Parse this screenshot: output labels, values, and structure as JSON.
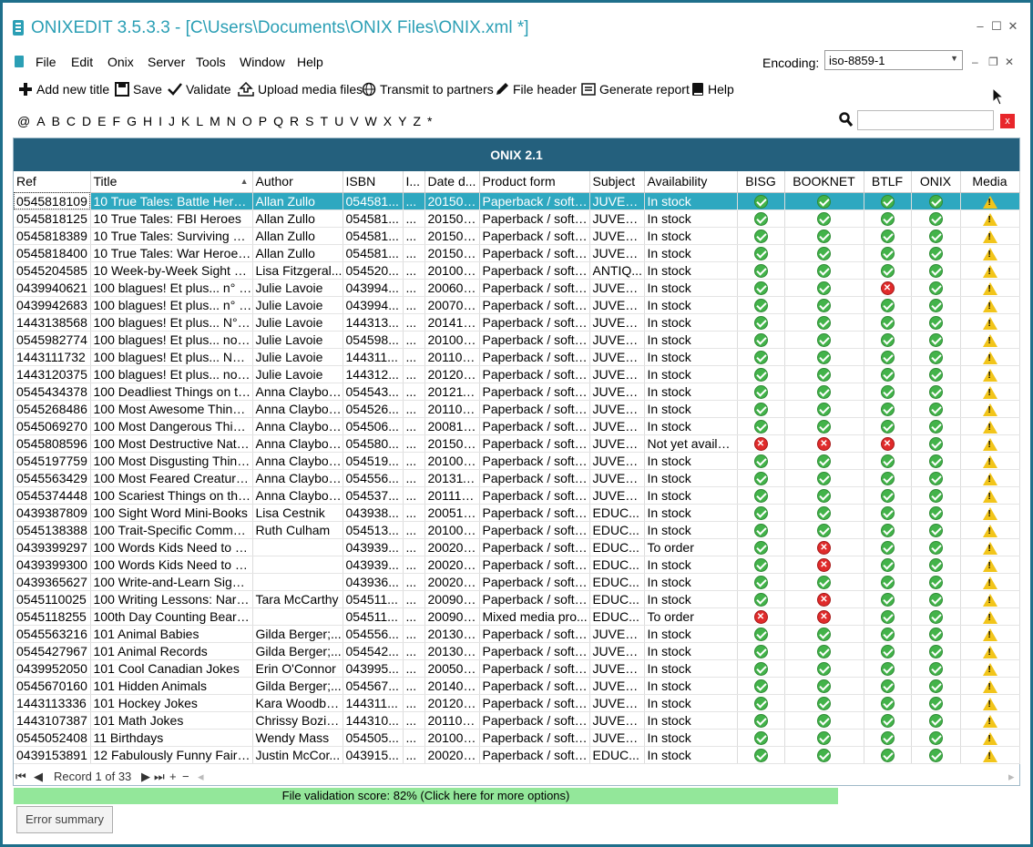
{
  "window": {
    "title": "ONIXEDIT 3.5.3.3 -  [C\\Users\\Documents\\ONIX Files\\ONIX.xml *]",
    "minimize": "–",
    "maximize": "☐",
    "close": "✕"
  },
  "menu": {
    "items": [
      "File",
      "Edit",
      "Onix",
      "Server",
      "Tools",
      "Window",
      "Help"
    ],
    "encoding_label": "Encoding:",
    "encoding_value": "iso-8859-1"
  },
  "toolbar": {
    "add_new_title": "Add new title",
    "save": "Save",
    "validate": "Validate",
    "upload_media": "Upload media files",
    "transmit": "Transmit to partners",
    "file_header": "File header",
    "generate_report": "Generate report",
    "help": "Help"
  },
  "alphabet": [
    "@",
    "A",
    "B",
    "C",
    "D",
    "E",
    "F",
    "G",
    "H",
    "I",
    "J",
    "K",
    "L",
    "M",
    "N",
    "O",
    "P",
    "Q",
    "R",
    "S",
    "T",
    "U",
    "V",
    "W",
    "X",
    "Y",
    "Z",
    "*"
  ],
  "search": {
    "clear": "x"
  },
  "grid": {
    "band_title": "ONIX 2.1",
    "columns": [
      "Ref",
      "Title",
      "Author",
      "ISBN",
      "I...",
      "Date d...",
      "Product form",
      "Subject",
      "Availability",
      "BISG",
      "BOOKNET",
      "BTLF",
      "ONIX",
      "Media"
    ],
    "rows": [
      {
        "ref": "0545818109",
        "title": "10 True Tales: Battle Heroes",
        "author": "Allan Zullo",
        "isbn": "054581...",
        "i": "...",
        "date": "201501...",
        "form": "Paperback / softb...",
        "subject": "JUVEN...",
        "avail": "In stock",
        "bisg": "ok",
        "booknet": "ok",
        "btlf": "ok",
        "onix": "ok",
        "media": "warn"
      },
      {
        "ref": "0545818125",
        "title": "10 True Tales: FBI Heroes",
        "author": "Allan Zullo",
        "isbn": "054581...",
        "i": "...",
        "date": "201501...",
        "form": "Paperback / softb...",
        "subject": "JUVEN...",
        "avail": "In stock",
        "bisg": "ok",
        "booknet": "ok",
        "btlf": "ok",
        "onix": "ok",
        "media": "warn"
      },
      {
        "ref": "0545818389",
        "title": "10 True Tales: Surviving Sh...",
        "author": "Allan Zullo",
        "isbn": "054581...",
        "i": "...",
        "date": "201501...",
        "form": "Paperback / softb...",
        "subject": "JUVEN...",
        "avail": "In stock",
        "bisg": "ok",
        "booknet": "ok",
        "btlf": "ok",
        "onix": "ok",
        "media": "warn"
      },
      {
        "ref": "0545818400",
        "title": "10 True Tales: War Heroes ...",
        "author": "Allan Zullo",
        "isbn": "054581...",
        "i": "...",
        "date": "201501...",
        "form": "Paperback / softb...",
        "subject": "JUVEN...",
        "avail": "In stock",
        "bisg": "ok",
        "booknet": "ok",
        "btlf": "ok",
        "onix": "ok",
        "media": "warn"
      },
      {
        "ref": "0545204585",
        "title": "10 Week-by-Week Sight W...",
        "author": "Lisa Fitzgeral...",
        "isbn": "054520...",
        "i": "...",
        "date": "201007...",
        "form": "Paperback / softb...",
        "subject": "ANTIQ...",
        "avail": "In stock",
        "bisg": "ok",
        "booknet": "ok",
        "btlf": "ok",
        "onix": "ok",
        "media": "warn"
      },
      {
        "ref": "0439940621",
        "title": "100 blagues! Et plus... n° 12",
        "author": "Julie Lavoie",
        "isbn": "043994...",
        "i": "...",
        "date": "200605...",
        "form": "Paperback / softb...",
        "subject": "JUVEN...",
        "avail": "In stock",
        "bisg": "ok",
        "booknet": "ok",
        "btlf": "err",
        "onix": "ok",
        "media": "warn"
      },
      {
        "ref": "0439942683",
        "title": "100 blagues! Et plus... n° 16",
        "author": "Julie Lavoie",
        "isbn": "043994...",
        "i": "...",
        "date": "200705...",
        "form": "Paperback / softb...",
        "subject": "JUVEN...",
        "avail": "In stock",
        "bisg": "ok",
        "booknet": "ok",
        "btlf": "ok",
        "onix": "ok",
        "media": "warn"
      },
      {
        "ref": "1443138568",
        "title": "100 blagues! Et plus... N° 34",
        "author": "Julie Lavoie",
        "isbn": "144313...",
        "i": "...",
        "date": "201410...",
        "form": "Paperback / softb...",
        "subject": "JUVEN...",
        "avail": "In stock",
        "bisg": "ok",
        "booknet": "ok",
        "btlf": "ok",
        "onix": "ok",
        "media": "warn"
      },
      {
        "ref": "0545982774",
        "title": "100 blagues! Et plus... no 25",
        "author": "Julie Lavoie",
        "isbn": "054598...",
        "i": "...",
        "date": "201003...",
        "form": "Paperback / softb...",
        "subject": "JUVEN...",
        "avail": "In stock",
        "bisg": "ok",
        "booknet": "ok",
        "btlf": "ok",
        "onix": "ok",
        "media": "warn"
      },
      {
        "ref": "1443111732",
        "title": "100 blagues! Et plus... No 28",
        "author": "Julie Lavoie",
        "isbn": "144311...",
        "i": "...",
        "date": "201109...",
        "form": "Paperback / softb...",
        "subject": "JUVEN...",
        "avail": "In stock",
        "bisg": "ok",
        "booknet": "ok",
        "btlf": "ok",
        "onix": "ok",
        "media": "warn"
      },
      {
        "ref": "1443120375",
        "title": "100 blagues! Et plus... no 30",
        "author": "Julie Lavoie",
        "isbn": "144312...",
        "i": "...",
        "date": "201209...",
        "form": "Paperback / softb...",
        "subject": "JUVEN...",
        "avail": "In stock",
        "bisg": "ok",
        "booknet": "ok",
        "btlf": "ok",
        "onix": "ok",
        "media": "warn"
      },
      {
        "ref": "0545434378",
        "title": "100 Deadliest Things on th...",
        "author": "Anna Claybou...",
        "isbn": "054543...",
        "i": "...",
        "date": "201211...",
        "form": "Paperback / softb...",
        "subject": "JUVEN...",
        "avail": "In stock",
        "bisg": "ok",
        "booknet": "ok",
        "btlf": "ok",
        "onix": "ok",
        "media": "warn"
      },
      {
        "ref": "0545268486",
        "title": "100 Most Awesome Things...",
        "author": "Anna Claybou...",
        "isbn": "054526...",
        "i": "...",
        "date": "201101...",
        "form": "Paperback / softb...",
        "subject": "JUVEN...",
        "avail": "In stock",
        "bisg": "ok",
        "booknet": "ok",
        "btlf": "ok",
        "onix": "ok",
        "media": "warn"
      },
      {
        "ref": "0545069270",
        "title": "100 Most Dangerous Thing...",
        "author": "Anna Claybou...",
        "isbn": "054506...",
        "i": "...",
        "date": "200810...",
        "form": "Paperback / softb...",
        "subject": "JUVEN...",
        "avail": "In stock",
        "bisg": "ok",
        "booknet": "ok",
        "btlf": "ok",
        "onix": "ok",
        "media": "warn"
      },
      {
        "ref": "0545808596",
        "title": "100 Most Destructive Natur...",
        "author": "Anna Claybou...",
        "isbn": "054580...",
        "i": "...",
        "date": "201501...",
        "form": "Paperback / softb...",
        "subject": "JUVEN...",
        "avail": "Not yet available",
        "bisg": "err",
        "booknet": "err",
        "btlf": "err",
        "onix": "ok",
        "media": "warn"
      },
      {
        "ref": "0545197759",
        "title": "100 Most Disgusting Thing...",
        "author": "Anna Claybou...",
        "isbn": "054519...",
        "i": "...",
        "date": "201001...",
        "form": "Paperback / softb...",
        "subject": "JUVEN...",
        "avail": "In stock",
        "bisg": "ok",
        "booknet": "ok",
        "btlf": "ok",
        "onix": "ok",
        "media": "warn"
      },
      {
        "ref": "0545563429",
        "title": "100 Most Feared Creatures...",
        "author": "Anna Claybou...",
        "isbn": "054556...",
        "i": "...",
        "date": "201311...",
        "form": "Paperback / softb...",
        "subject": "JUVEN...",
        "avail": "In stock",
        "bisg": "ok",
        "booknet": "ok",
        "btlf": "ok",
        "onix": "ok",
        "media": "warn"
      },
      {
        "ref": "0545374448",
        "title": "100 Scariest Things on the ...",
        "author": "Anna Claybou...",
        "isbn": "054537...",
        "i": "...",
        "date": "201110...",
        "form": "Paperback / softb...",
        "subject": "JUVEN...",
        "avail": "In stock",
        "bisg": "ok",
        "booknet": "ok",
        "btlf": "ok",
        "onix": "ok",
        "media": "warn"
      },
      {
        "ref": "0439387809",
        "title": "100 Sight Word Mini-Books",
        "author": "Lisa Cestnik",
        "isbn": "043938...",
        "i": "...",
        "date": "200512...",
        "form": "Paperback / softb...",
        "subject": "EDUC...",
        "avail": "In stock",
        "bisg": "ok",
        "booknet": "ok",
        "btlf": "ok",
        "onix": "ok",
        "media": "warn"
      },
      {
        "ref": "0545138388",
        "title": "100 Trait-Specific Comment...",
        "author": "Ruth Culham",
        "isbn": "054513...",
        "i": "...",
        "date": "201008...",
        "form": "Paperback / softb...",
        "subject": "EDUC...",
        "avail": "In stock",
        "bisg": "ok",
        "booknet": "ok",
        "btlf": "ok",
        "onix": "ok",
        "media": "warn"
      },
      {
        "ref": "0439399297",
        "title": "100 Words Kids Need to R...",
        "author": "",
        "isbn": "043939...",
        "i": "...",
        "date": "200201...",
        "form": "Paperback / softb...",
        "subject": "EDUC...",
        "avail": "To order",
        "bisg": "ok",
        "booknet": "err",
        "btlf": "ok",
        "onix": "ok",
        "media": "warn"
      },
      {
        "ref": "0439399300",
        "title": "100 Words Kids Need to R...",
        "author": "",
        "isbn": "043939...",
        "i": "...",
        "date": "200201...",
        "form": "Paperback / softb...",
        "subject": "EDUC...",
        "avail": "In stock",
        "bisg": "ok",
        "booknet": "err",
        "btlf": "ok",
        "onix": "ok",
        "media": "warn"
      },
      {
        "ref": "0439365627",
        "title": "100 Write-and-Learn Sight ...",
        "author": "",
        "isbn": "043936...",
        "i": "...",
        "date": "200202...",
        "form": "Paperback / softb...",
        "subject": "EDUC...",
        "avail": "In stock",
        "bisg": "ok",
        "booknet": "ok",
        "btlf": "ok",
        "onix": "ok",
        "media": "warn"
      },
      {
        "ref": "0545110025",
        "title": "100 Writing Lessons: Narra...",
        "author": "Tara McCarthy",
        "isbn": "054511...",
        "i": "...",
        "date": "200904...",
        "form": "Paperback / softb...",
        "subject": "EDUC...",
        "avail": "In stock",
        "bisg": "ok",
        "booknet": "err",
        "btlf": "ok",
        "onix": "ok",
        "media": "warn"
      },
      {
        "ref": "0545118255",
        "title": "100th Day Counting Bears ...",
        "author": "",
        "isbn": "054511...",
        "i": "...",
        "date": "200902...",
        "form": "Mixed media pro...",
        "subject": "EDUC...",
        "avail": "To order",
        "bisg": "err",
        "booknet": "err",
        "btlf": "ok",
        "onix": "ok",
        "media": "warn"
      },
      {
        "ref": "0545563216",
        "title": "101 Animal Babies",
        "author": "Gilda Berger;...",
        "isbn": "054556...",
        "i": "...",
        "date": "201309...",
        "form": "Paperback / softb...",
        "subject": "JUVEN...",
        "avail": "In stock",
        "bisg": "ok",
        "booknet": "ok",
        "btlf": "ok",
        "onix": "ok",
        "media": "warn"
      },
      {
        "ref": "0545427967",
        "title": "101 Animal Records",
        "author": "Gilda Berger;...",
        "isbn": "054542...",
        "i": "...",
        "date": "201302...",
        "form": "Paperback / softb...",
        "subject": "JUVEN...",
        "avail": "In stock",
        "bisg": "ok",
        "booknet": "ok",
        "btlf": "ok",
        "onix": "ok",
        "media": "warn"
      },
      {
        "ref": "0439952050",
        "title": "101 Cool Canadian Jokes",
        "author": "Erin O'Connor",
        "isbn": "043995...",
        "i": "...",
        "date": "200508...",
        "form": "Paperback / softb...",
        "subject": "JUVEN...",
        "avail": "In stock",
        "bisg": "ok",
        "booknet": "ok",
        "btlf": "ok",
        "onix": "ok",
        "media": "warn"
      },
      {
        "ref": "0545670160",
        "title": "101 Hidden Animals",
        "author": "Gilda Berger;...",
        "isbn": "054567...",
        "i": "...",
        "date": "201409...",
        "form": "Paperback / softb...",
        "subject": "JUVEN...",
        "avail": "In stock",
        "bisg": "ok",
        "booknet": "ok",
        "btlf": "ok",
        "onix": "ok",
        "media": "warn"
      },
      {
        "ref": "1443113336",
        "title": "101 Hockey Jokes",
        "author": "Kara Woodburn",
        "isbn": "144311...",
        "i": "...",
        "date": "201208...",
        "form": "Paperback / softb...",
        "subject": "JUVEN...",
        "avail": "In stock",
        "bisg": "ok",
        "booknet": "ok",
        "btlf": "ok",
        "onix": "ok",
        "media": "warn"
      },
      {
        "ref": "1443107387",
        "title": "101 Math Jokes",
        "author": "Chrissy Bozik...",
        "isbn": "144310...",
        "i": "...",
        "date": "201108...",
        "form": "Paperback / softb...",
        "subject": "JUVEN...",
        "avail": "In stock",
        "bisg": "ok",
        "booknet": "ok",
        "btlf": "ok",
        "onix": "ok",
        "media": "warn"
      },
      {
        "ref": "0545052408",
        "title": "11 Birthdays",
        "author": "Wendy Mass",
        "isbn": "054505...",
        "i": "...",
        "date": "201001...",
        "form": "Paperback / softb...",
        "subject": "JUVEN...",
        "avail": "In stock",
        "bisg": "ok",
        "booknet": "ok",
        "btlf": "ok",
        "onix": "ok",
        "media": "warn"
      },
      {
        "ref": "0439153891",
        "title": "12 Fabulously Funny Fairy ...",
        "author": "Justin McCor...",
        "isbn": "043915...",
        "i": "...",
        "date": "200202...",
        "form": "Paperback / softb...",
        "subject": "EDUC...",
        "avail": "In stock",
        "bisg": "ok",
        "booknet": "ok",
        "btlf": "ok",
        "onix": "ok",
        "media": "warn"
      }
    ]
  },
  "navigator": {
    "first": "⏮",
    "prev": "◀",
    "record_text": "Record 1 of 33",
    "next": "▶",
    "last": "⏭",
    "add": "+",
    "remove": "−",
    "scroll_left": "◂",
    "scroll_right": "▸"
  },
  "validation": {
    "score_text": "File validation score: 82%      (Click here for more options)",
    "score_percent": 82,
    "color": "#93e79a"
  },
  "error_summary_button": "Error summary"
}
